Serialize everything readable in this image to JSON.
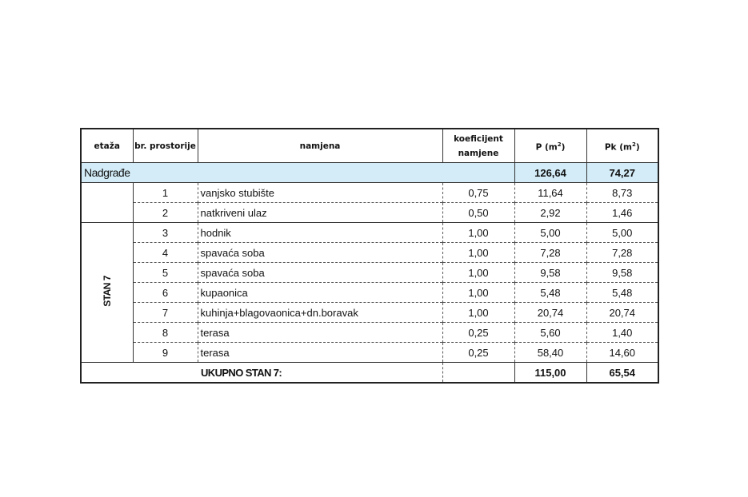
{
  "headers": {
    "etaza": "etaža",
    "br": "br. prostorije",
    "namjena": "namjena",
    "koef": "koeficijent namjene",
    "p": "P (m",
    "pk": "Pk (m",
    "unit_sup": "2",
    "unit_close": ")"
  },
  "nadgradje": {
    "label": "Nadgrađe",
    "p": "126,64",
    "pk": "74,27"
  },
  "group_label": "STAN 7",
  "rows": [
    {
      "br": "1",
      "namjena": "vanjsko stubište",
      "koef": "0,75",
      "p": "11,64",
      "pk": "8,73"
    },
    {
      "br": "2",
      "namjena": "natkriveni ulaz",
      "koef": "0,50",
      "p": "2,92",
      "pk": "1,46"
    },
    {
      "br": "3",
      "namjena": "hodnik",
      "koef": "1,00",
      "p": "5,00",
      "pk": "5,00"
    },
    {
      "br": "4",
      "namjena": "spavaća soba",
      "koef": "1,00",
      "p": "7,28",
      "pk": "7,28"
    },
    {
      "br": "5",
      "namjena": "spavaća soba",
      "koef": "1,00",
      "p": "9,58",
      "pk": "9,58"
    },
    {
      "br": "6",
      "namjena": "kupaonica",
      "koef": "1,00",
      "p": "5,48",
      "pk": "5,48"
    },
    {
      "br": "7",
      "namjena": "kuhinja+blagovaonica+dn.boravak",
      "koef": "1,00",
      "p": "20,74",
      "pk": "20,74"
    },
    {
      "br": "8",
      "namjena": "terasa",
      "koef": "0,25",
      "p": "5,60",
      "pk": "1,40"
    },
    {
      "br": "9",
      "namjena": "terasa",
      "koef": "0,25",
      "p": "58,40",
      "pk": "14,60"
    }
  ],
  "total": {
    "label": "UKUPNO STAN 7:",
    "p": "115,00",
    "pk": "65,54"
  }
}
